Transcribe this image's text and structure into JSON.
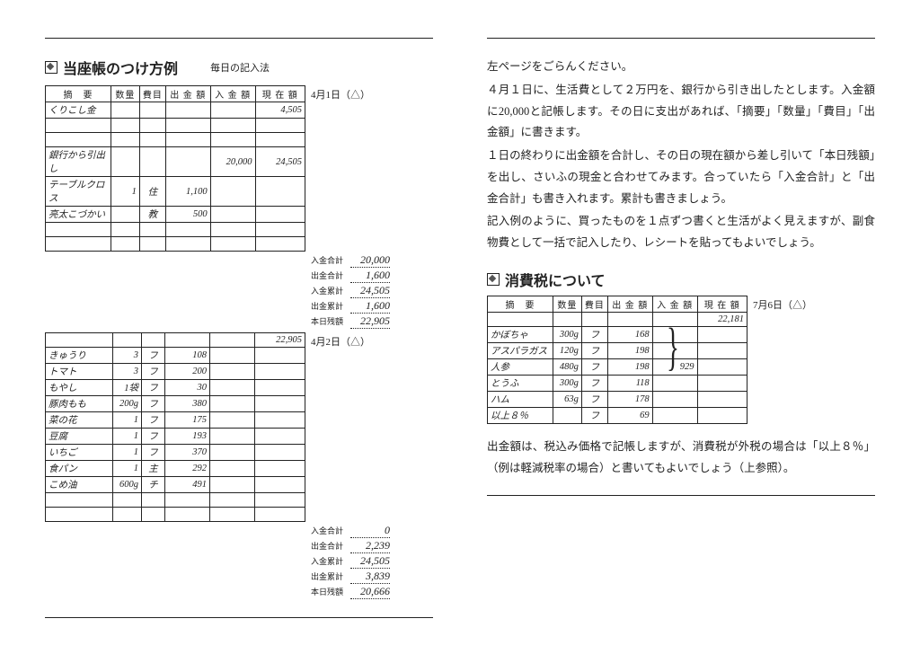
{
  "left": {
    "title": "当座帳のつけ方例",
    "subtitle": "毎日の記入法",
    "headers": {
      "item": "摘　要",
      "qty": "数量",
      "cat": "費目",
      "amt": "出 金 額",
      "inc": "入 金 額",
      "bal": "現 在 額"
    },
    "date1": "4月1日（△）",
    "date2": "4月2日（△）",
    "day1_rows": [
      {
        "item": "くりこし金",
        "qty": "",
        "cat": "",
        "amt": "",
        "inc": "",
        "bal": "4,505"
      },
      {
        "item": "",
        "qty": "",
        "cat": "",
        "amt": "",
        "inc": "",
        "bal": ""
      },
      {
        "item": "",
        "qty": "",
        "cat": "",
        "amt": "",
        "inc": "",
        "bal": ""
      },
      {
        "item": "銀行から引出し",
        "qty": "",
        "cat": "",
        "amt": "",
        "inc": "20,000",
        "bal": "24,505"
      },
      {
        "item": "テーブルクロス",
        "qty": "1",
        "cat": "住",
        "amt": "1,100",
        "inc": "",
        "bal": ""
      },
      {
        "item": "亮太こづかい",
        "qty": "",
        "cat": "教",
        "amt": "500",
        "inc": "",
        "bal": ""
      },
      {
        "item": "",
        "qty": "",
        "cat": "",
        "amt": "",
        "inc": "",
        "bal": ""
      },
      {
        "item": "",
        "qty": "",
        "cat": "",
        "amt": "",
        "inc": "",
        "bal": ""
      }
    ],
    "summary1": [
      {
        "lbl": "入金合計",
        "val": "20,000"
      },
      {
        "lbl": "出金合計",
        "val": "1,600"
      },
      {
        "lbl": "入金累計",
        "val": "24,505"
      },
      {
        "lbl": "出金累計",
        "val": "1,600"
      },
      {
        "lbl": "本日残額",
        "val": "22,905"
      }
    ],
    "carry2": "22,905",
    "day2_rows": [
      {
        "item": "きゅうり",
        "qty": "3",
        "cat": "フ",
        "amt": "108",
        "inc": "",
        "bal": ""
      },
      {
        "item": "トマト",
        "qty": "3",
        "cat": "フ",
        "amt": "200",
        "inc": "",
        "bal": ""
      },
      {
        "item": "もやし",
        "qty": "1袋",
        "cat": "フ",
        "amt": "30",
        "inc": "",
        "bal": ""
      },
      {
        "item": "豚肉もも",
        "qty": "200g",
        "cat": "フ",
        "amt": "380",
        "inc": "",
        "bal": ""
      },
      {
        "item": "菜の花",
        "qty": "1",
        "cat": "フ",
        "amt": "175",
        "inc": "",
        "bal": ""
      },
      {
        "item": "豆腐",
        "qty": "1",
        "cat": "フ",
        "amt": "193",
        "inc": "",
        "bal": ""
      },
      {
        "item": "いちご",
        "qty": "1",
        "cat": "フ",
        "amt": "370",
        "inc": "",
        "bal": ""
      },
      {
        "item": "食パン",
        "qty": "1",
        "cat": "主",
        "amt": "292",
        "inc": "",
        "bal": ""
      },
      {
        "item": "こめ油",
        "qty": "600g",
        "cat": "チ",
        "amt": "491",
        "inc": "",
        "bal": ""
      },
      {
        "item": "",
        "qty": "",
        "cat": "",
        "amt": "",
        "inc": "",
        "bal": ""
      },
      {
        "item": "",
        "qty": "",
        "cat": "",
        "amt": "",
        "inc": "",
        "bal": ""
      }
    ],
    "summary2": [
      {
        "lbl": "入金合計",
        "val": "0"
      },
      {
        "lbl": "出金合計",
        "val": "2,239"
      },
      {
        "lbl": "入金累計",
        "val": "24,505"
      },
      {
        "lbl": "出金累計",
        "val": "3,839"
      },
      {
        "lbl": "本日残額",
        "val": "20,666"
      }
    ]
  },
  "right": {
    "para": [
      "左ページをごらんください。",
      "４月１日に、生活費として２万円を、銀行から引き出したとします。入金額に20,000と記帳します。その日に支出があれば、「摘要」「数量」「費目」「出金額」に書きます。",
      "１日の終わりに出金額を合計し、その日の現在額から差し引いて「本日残額」を出し、さいふの現金と合わせてみます。合っていたら「入金合計」と「出金合計」も書き入れます。累計も書きましょう。",
      "記入例のように、買ったものを１点ずつ書くと生活がよく見えますが、副食物費として一括で記入したり、レシートを貼ってもよいでしょう。"
    ],
    "tax_title": "消費税について",
    "tax_date": "7月6日（△）",
    "tax_headers": {
      "item": "摘　要",
      "qty": "数量",
      "cat": "費目",
      "amt": "出 金 額",
      "inc": "入 金 額",
      "bal": "現 在 額"
    },
    "tax_rows": [
      {
        "item": "",
        "qty": "",
        "cat": "",
        "amt": "",
        "inc": "",
        "bal": "22,181"
      },
      {
        "item": "かぼちゃ",
        "qty": "300g",
        "cat": "フ",
        "amt": "168",
        "inc": "",
        "bal": ""
      },
      {
        "item": "アスパラガス",
        "qty": "120g",
        "cat": "フ",
        "amt": "198",
        "inc": "",
        "bal": ""
      },
      {
        "item": "人参",
        "qty": "480g",
        "cat": "フ",
        "amt": "198",
        "inc": "929",
        "bal": ""
      },
      {
        "item": "とうふ",
        "qty": "300g",
        "cat": "フ",
        "amt": "118",
        "inc": "",
        "bal": ""
      },
      {
        "item": "ハム",
        "qty": "63g",
        "cat": "フ",
        "amt": "178",
        "inc": "",
        "bal": ""
      },
      {
        "item": "以上８％",
        "qty": "",
        "cat": "フ",
        "amt": "69",
        "inc": "",
        "bal": ""
      }
    ],
    "tax_para": "出金額は、税込み価格で記帳しますが、消費税が外税の場合は「以上８％」（例は軽減税率の場合）と書いてもよいでしょう（上参照）。"
  }
}
